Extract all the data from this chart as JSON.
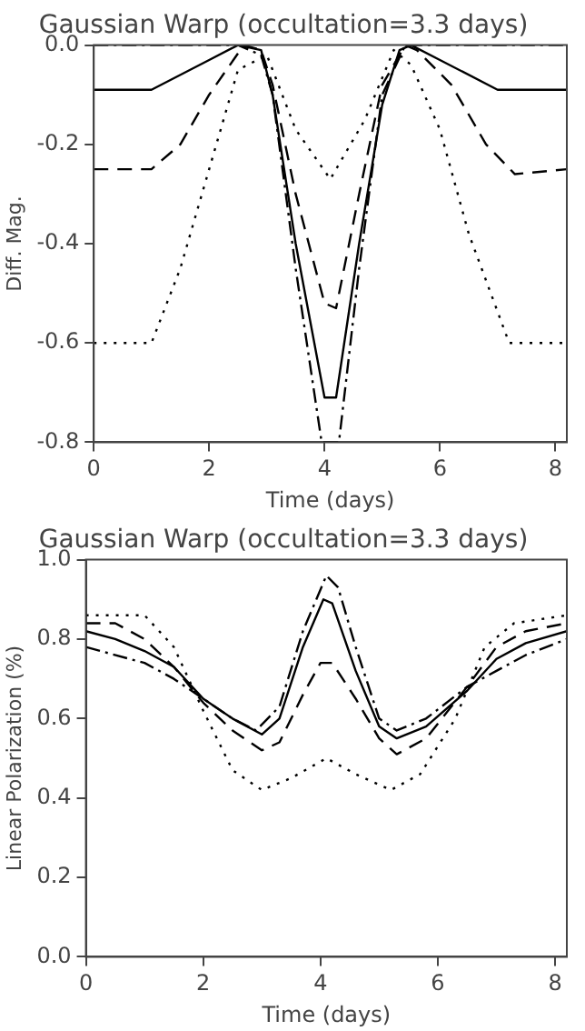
{
  "chart_data": [
    {
      "type": "line",
      "title": "Gaussian Warp (occultation=3.3 days)",
      "xlabel": "Time (days)",
      "ylabel": "Diff. Mag.",
      "xlim": [
        0,
        8.2
      ],
      "xticks": [
        0,
        2,
        4,
        6,
        8
      ],
      "ylim": [
        -0.8,
        0
      ],
      "yticks": [
        {
          "value": -0.8,
          "label": "-0.8"
        },
        {
          "value": -0.6,
          "label": "-0.6"
        },
        {
          "value": -0.4,
          "label": "-0.4"
        },
        {
          "value": -0.2,
          "label": "-0.2"
        },
        {
          "value": 0,
          "label": "0.0"
        }
      ],
      "grid": false,
      "legend": false,
      "marker": "none",
      "series": [
        {
          "color": "#000000",
          "line_style": "solid",
          "x": [
            0,
            1,
            2,
            2.5,
            2.9,
            3.1,
            3.5,
            4.0,
            4.2,
            4.6,
            5.0,
            5.3,
            5.5,
            6,
            7,
            8.2
          ],
          "values": [
            -0.09,
            -0.09,
            -0.03,
            0,
            -0.01,
            -0.1,
            -0.4,
            -0.71,
            -0.71,
            -0.4,
            -0.12,
            -0.01,
            0,
            -0.03,
            -0.09,
            -0.09
          ]
        },
        {
          "color": "#000000",
          "line_style": "dashed",
          "x": [
            0,
            1,
            1.5,
            2,
            2.6,
            2.9,
            3.1,
            3.5,
            4,
            4.2,
            4.6,
            5.0,
            5.4,
            5.6,
            6.2,
            6.8,
            7.3,
            8.2
          ],
          "values": [
            -0.25,
            -0.25,
            -0.2,
            -0.1,
            0,
            -0.01,
            -0.08,
            -0.3,
            -0.52,
            -0.53,
            -0.3,
            -0.08,
            0,
            -0.01,
            -0.08,
            -0.2,
            -0.26,
            -0.25
          ]
        },
        {
          "color": "#000000",
          "line_style": "dotted",
          "x": [
            0,
            1,
            1.5,
            2,
            2.5,
            3,
            3.5,
            4.1,
            4.7,
            5.2,
            5.5,
            6,
            6.5,
            7.2,
            8.2
          ],
          "values": [
            -0.6,
            -0.6,
            -0.45,
            -0.25,
            -0.05,
            -0.02,
            -0.17,
            -0.27,
            -0.15,
            -0.01,
            -0.04,
            -0.17,
            -0.38,
            -0.6,
            -0.6
          ]
        },
        {
          "color": "#000000",
          "line_style": "dashdot",
          "x": [
            0,
            1,
            2.5,
            2.9,
            3.1,
            3.5,
            3.95,
            4.25,
            4.6,
            5.0,
            5.4,
            6,
            8.2
          ],
          "values": [
            0,
            0,
            0,
            -0.02,
            -0.1,
            -0.45,
            -0.8,
            -0.8,
            -0.45,
            -0.1,
            0,
            0,
            0
          ]
        }
      ]
    },
    {
      "type": "line",
      "title": "Gaussian Warp (occultation=3.3 days)",
      "xlabel": "Time (days)",
      "ylabel": "Linear Polarization (%)",
      "xlim": [
        0,
        8.2
      ],
      "xticks": [
        0,
        2,
        4,
        6,
        8
      ],
      "ylim": [
        0,
        1
      ],
      "yticks": [
        {
          "value": 0,
          "label": "0.0"
        },
        {
          "value": 0.2,
          "label": "0.2"
        },
        {
          "value": 0.4,
          "label": "0.4"
        },
        {
          "value": 0.6,
          "label": "0.6"
        },
        {
          "value": 0.8,
          "label": "0.8"
        },
        {
          "value": 1,
          "label": "1.0"
        }
      ],
      "grid": false,
      "legend": false,
      "marker": "none",
      "series": [
        {
          "color": "#000000",
          "line_style": "solid",
          "x": [
            0,
            0.5,
            1,
            1.5,
            2,
            2.5,
            3,
            3.3,
            3.7,
            4.05,
            4.2,
            4.6,
            5,
            5.3,
            5.8,
            6.5,
            7,
            7.5,
            8.2
          ],
          "values": [
            0.82,
            0.8,
            0.77,
            0.73,
            0.65,
            0.6,
            0.56,
            0.6,
            0.78,
            0.9,
            0.89,
            0.72,
            0.58,
            0.55,
            0.58,
            0.67,
            0.75,
            0.79,
            0.82
          ]
        },
        {
          "color": "#000000",
          "line_style": "dashed",
          "x": [
            0,
            0.5,
            1,
            1.5,
            2,
            2.5,
            3,
            3.3,
            3.7,
            4.0,
            4.2,
            4.6,
            5,
            5.3,
            5.8,
            6.5,
            7,
            7.5,
            8.2
          ],
          "values": [
            0.84,
            0.84,
            0.8,
            0.73,
            0.64,
            0.57,
            0.52,
            0.54,
            0.66,
            0.74,
            0.74,
            0.65,
            0.55,
            0.51,
            0.55,
            0.68,
            0.78,
            0.82,
            0.84
          ]
        },
        {
          "color": "#000000",
          "line_style": "dotted",
          "x": [
            0,
            1,
            1.5,
            2,
            2.5,
            3,
            3.5,
            4.1,
            4.6,
            5.2,
            5.7,
            6.3,
            6.8,
            7.3,
            8.2
          ],
          "values": [
            0.86,
            0.86,
            0.78,
            0.62,
            0.47,
            0.42,
            0.45,
            0.5,
            0.46,
            0.42,
            0.46,
            0.6,
            0.78,
            0.84,
            0.86
          ]
        },
        {
          "color": "#000000",
          "line_style": "dashdot",
          "x": [
            0,
            1,
            1.5,
            2,
            2.5,
            2.9,
            3.3,
            3.7,
            4.1,
            4.3,
            4.6,
            5,
            5.3,
            5.8,
            6.5,
            7,
            7.5,
            8.2
          ],
          "values": [
            0.78,
            0.74,
            0.7,
            0.65,
            0.6,
            0.57,
            0.63,
            0.82,
            0.96,
            0.93,
            0.78,
            0.6,
            0.57,
            0.6,
            0.68,
            0.72,
            0.76,
            0.8
          ]
        }
      ]
    }
  ]
}
